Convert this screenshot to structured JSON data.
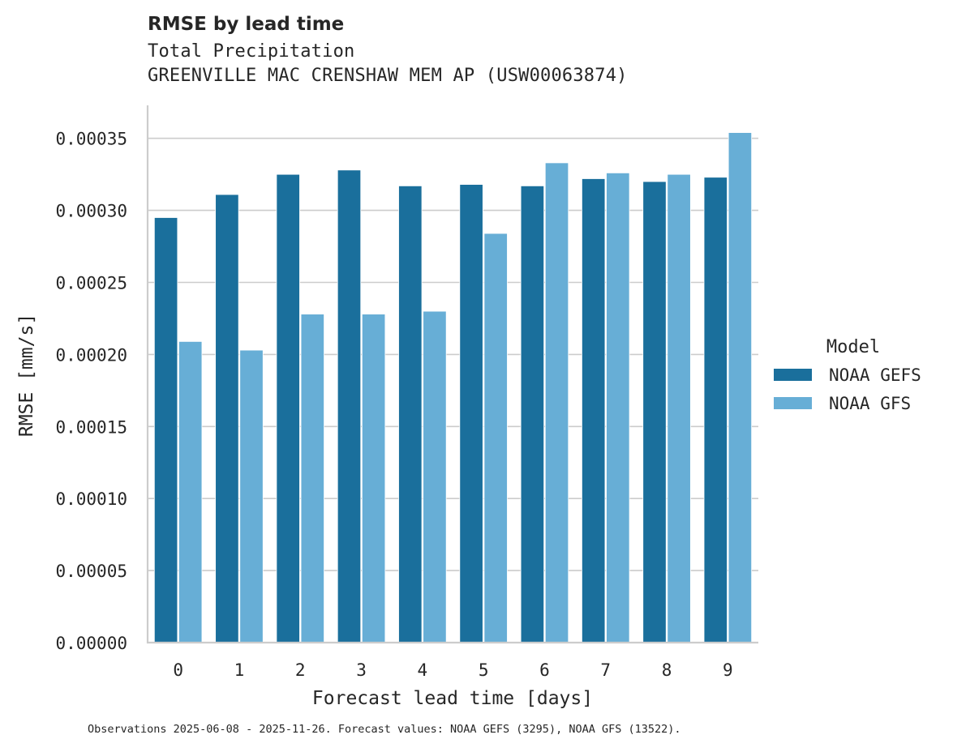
{
  "header": {
    "title": "RMSE by lead time",
    "subtitle_1": "Total Precipitation",
    "subtitle_2": "GREENVILLE MAC CRENSHAW MEM AP (USW00063874)"
  },
  "footnote": "Observations 2025-06-08 - 2025-11-26. Forecast values: NOAA GEFS (3295), NOAA GFS (13522).",
  "colors": {
    "NOAA GEFS": "#1a6f9c",
    "NOAA GFS": "#67aed6",
    "grid": "#cccccc",
    "axis": "#cccccc",
    "text": "#262626"
  },
  "chart_data": {
    "type": "bar",
    "title": "RMSE by lead time",
    "subtitle": [
      "Total Precipitation",
      "GREENVILLE MAC CRENSHAW MEM AP (USW00063874)"
    ],
    "xlabel": "Forecast lead time [days]",
    "ylabel": "RMSE [mm/s]",
    "categories": [
      "0",
      "1",
      "2",
      "3",
      "4",
      "5",
      "6",
      "7",
      "8",
      "9"
    ],
    "yticks": [
      "0.00000",
      "0.00005",
      "0.00010",
      "0.00015",
      "0.00020",
      "0.00025",
      "0.00030",
      "0.00035"
    ],
    "ylim": [
      0,
      0.000372
    ],
    "grid": "horizontal",
    "legend": {
      "title": "Model",
      "position": "right",
      "entries": [
        "NOAA GEFS",
        "NOAA GFS"
      ]
    },
    "series": [
      {
        "name": "NOAA GEFS",
        "values": [
          0.000295,
          0.000311,
          0.000325,
          0.000328,
          0.000317,
          0.000318,
          0.000317,
          0.000322,
          0.00032,
          0.000323
        ]
      },
      {
        "name": "NOAA GFS",
        "values": [
          0.000209,
          0.000203,
          0.000228,
          0.000228,
          0.00023,
          0.000284,
          0.000333,
          0.000326,
          0.000325,
          0.000354
        ]
      }
    ]
  }
}
